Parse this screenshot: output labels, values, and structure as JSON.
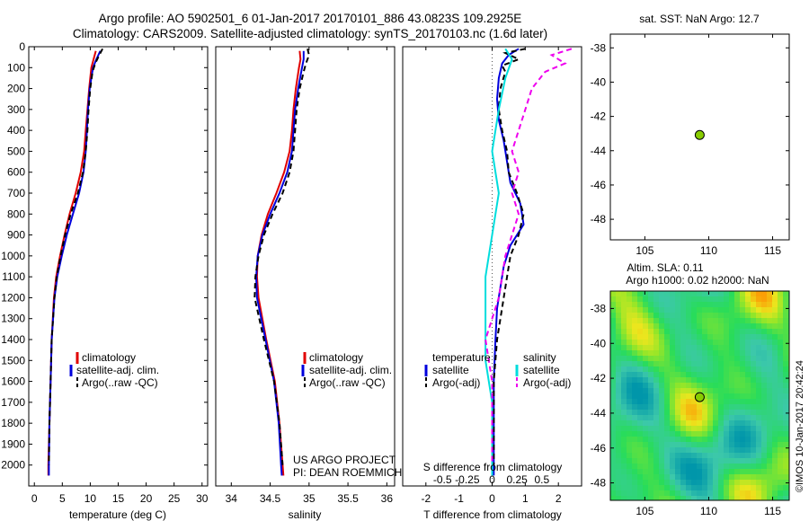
{
  "header": {
    "line1": "Argo profile: AO 5902501_6 01-Jan-2017 20170101_886 43.0823S 109.2925E",
    "line2": "Climatology: CARS2009. Satellite-adjusted climatology: synTS_20170103.nc (1.6d later)"
  },
  "colors": {
    "climatology": "#e00000",
    "satellite": "#0000dd",
    "argo": "#000000",
    "sat_salinity": "#00dddd",
    "argo_salinity": "#ee00ee",
    "marker": "#88cc00"
  },
  "credits": {
    "project": "US ARGO PROJECT",
    "pi": "PI: DEAN ROEMMICH",
    "imos": "©IMOS 10-Jan-2017 20:42:24"
  },
  "chart_data": [
    {
      "id": "temperature",
      "type": "line",
      "xlabel": "temperature (deg C)",
      "xlim": [
        -1,
        31
      ],
      "xticks": [
        0,
        5,
        10,
        15,
        20,
        25,
        30
      ],
      "ylim": [
        2100,
        0
      ],
      "yticks": [
        0,
        100,
        200,
        300,
        400,
        500,
        600,
        700,
        800,
        900,
        1000,
        1100,
        1200,
        1300,
        1400,
        1500,
        1600,
        1700,
        1800,
        1900,
        2000
      ],
      "legend": [
        "climatology",
        "satellite-adj. clim.",
        "Argo(..raw -QC)"
      ],
      "series": [
        {
          "name": "climatology",
          "color": "#e00000",
          "dash": "",
          "depth": [
            20,
            60,
            100,
            150,
            200,
            300,
            400,
            500,
            600,
            700,
            800,
            900,
            1000,
            1100,
            1200,
            1400,
            1600,
            1800,
            2000,
            2050
          ],
          "values": [
            11.0,
            10.6,
            10.2,
            10.0,
            9.8,
            9.5,
            9.2,
            8.9,
            8.3,
            7.4,
            6.3,
            5.4,
            4.6,
            3.9,
            3.5,
            3.1,
            2.9,
            2.7,
            2.5,
            2.5
          ]
        },
        {
          "name": "satellite-adj. clim.",
          "color": "#0000dd",
          "dash": "",
          "depth": [
            20,
            60,
            100,
            150,
            200,
            300,
            400,
            500,
            600,
            700,
            800,
            900,
            1000,
            1100,
            1200,
            1400,
            1600,
            1800,
            2000,
            2050
          ],
          "values": [
            11.8,
            11.1,
            10.5,
            10.2,
            9.9,
            9.6,
            9.4,
            9.2,
            8.8,
            8.0,
            6.9,
            5.8,
            4.9,
            4.1,
            3.6,
            3.1,
            2.9,
            2.7,
            2.6,
            2.6
          ]
        },
        {
          "name": "Argo(..raw -QC)",
          "color": "#000000",
          "dash": "6,4",
          "depth": [
            10,
            40,
            80,
            120,
            200,
            300,
            400,
            500,
            600,
            700,
            800,
            900,
            1000,
            1100,
            1200,
            1400,
            1600,
            1800,
            2000
          ],
          "values": [
            12.2,
            11.6,
            10.9,
            10.4,
            10.0,
            9.7,
            9.5,
            9.2,
            8.7,
            7.8,
            6.5,
            5.5,
            4.7,
            4.0,
            3.6,
            3.1,
            2.9,
            2.7,
            2.6
          ]
        }
      ]
    },
    {
      "id": "salinity",
      "type": "line",
      "xlabel": "salinity",
      "xlim": [
        33.8,
        36.1
      ],
      "xticks": [
        34,
        34.5,
        35,
        35.5,
        36
      ],
      "ylim": [
        2100,
        0
      ],
      "legend": [
        "climatology",
        "satellite-adj. clim.",
        "Argo(..raw -QC)"
      ],
      "series": [
        {
          "name": "climatology",
          "color": "#e00000",
          "dash": "",
          "depth": [
            20,
            60,
            100,
            200,
            300,
            400,
            500,
            600,
            700,
            800,
            900,
            1000,
            1100,
            1200,
            1400,
            1600,
            1800,
            2000,
            2050
          ],
          "values": [
            34.88,
            34.89,
            34.87,
            34.83,
            34.8,
            34.78,
            34.75,
            34.68,
            34.58,
            34.47,
            34.39,
            34.34,
            34.33,
            34.35,
            34.45,
            34.56,
            34.62,
            34.66,
            34.67
          ]
        },
        {
          "name": "satellite-adj. clim.",
          "color": "#0000dd",
          "dash": "",
          "depth": [
            20,
            60,
            100,
            200,
            300,
            400,
            500,
            600,
            700,
            800,
            900,
            1000,
            1100,
            1200,
            1400,
            1600,
            1800,
            2000,
            2050
          ],
          "values": [
            34.93,
            34.93,
            34.91,
            34.86,
            34.82,
            34.8,
            34.78,
            34.72,
            34.62,
            34.5,
            34.4,
            34.34,
            34.32,
            34.33,
            34.44,
            34.55,
            34.61,
            34.64,
            34.65
          ]
        },
        {
          "name": "Argo(..raw -QC)",
          "color": "#000000",
          "dash": "6,4",
          "depth": [
            10,
            40,
            80,
            120,
            200,
            300,
            400,
            500,
            600,
            700,
            800,
            900,
            1000,
            1100,
            1200,
            1400,
            1600,
            1800,
            2000
          ],
          "values": [
            34.98,
            35.0,
            34.96,
            34.93,
            34.88,
            34.84,
            34.82,
            34.8,
            34.75,
            34.66,
            34.53,
            34.42,
            34.35,
            34.31,
            34.3,
            34.42,
            34.55,
            34.62,
            34.66
          ]
        }
      ]
    },
    {
      "id": "difference",
      "type": "line",
      "xlabel": "T difference from climatology",
      "xlabel2": "S difference from climatology",
      "xlim": [
        -2.7,
        2.7
      ],
      "xticks": [
        -2,
        -1,
        0,
        1,
        2
      ],
      "sticks": [
        "-0.5",
        "-0.25",
        "0",
        "0.25",
        "0.5"
      ],
      "ylim": [
        2100,
        0
      ],
      "legend": {
        "temperature_heading": "temperature",
        "salinity_heading": "salinity",
        "temperature": [
          "satellite",
          "Argo(-adj)"
        ],
        "salinity": [
          "satellite",
          "Argo(-adj)"
        ]
      },
      "series": [
        {
          "name": "T satellite",
          "color": "#0000dd",
          "dash": "",
          "depth": [
            10,
            40,
            80,
            150,
            250,
            350,
            450,
            550,
            650,
            750,
            850,
            950,
            1050,
            1150,
            1250,
            1400,
            1600,
            1800,
            2000,
            2050
          ],
          "values": [
            0.8,
            0.5,
            0.3,
            0.2,
            0.15,
            0.2,
            0.35,
            0.45,
            0.55,
            0.85,
            0.95,
            0.55,
            0.35,
            0.25,
            0.15,
            0.1,
            0.05,
            0.05,
            0.05,
            0.05
          ]
        },
        {
          "name": "T Argo(-adj)",
          "color": "#000000",
          "dash": "6,4",
          "depth": [
            10,
            30,
            60,
            90,
            120,
            200,
            300,
            400,
            500,
            600,
            700,
            800,
            900,
            1000,
            1100,
            1200,
            1300,
            1400,
            1600,
            1800,
            2000
          ],
          "values": [
            1.0,
            0.4,
            0.8,
            0.3,
            0.4,
            0.25,
            0.2,
            0.3,
            0.45,
            0.5,
            0.75,
            0.95,
            0.8,
            0.55,
            0.45,
            0.35,
            0.25,
            0.15,
            0.05,
            0.05,
            0.05
          ]
        },
        {
          "name": "S satellite",
          "color": "#00dddd",
          "dash": "",
          "depth": [
            10,
            60,
            150,
            300,
            500,
            700,
            900,
            1100,
            1300,
            1500,
            1700,
            1900,
            2050
          ],
          "values": [
            0.1,
            0.15,
            0.1,
            0.05,
            0.0,
            0.05,
            0.0,
            -0.05,
            -0.05,
            -0.05,
            0.0,
            0.0,
            0.0
          ]
        },
        {
          "name": "S Argo(-adj)",
          "color": "#ee00ee",
          "dash": "6,4",
          "depth": [
            10,
            40,
            80,
            120,
            200,
            300,
            400,
            500,
            600,
            700,
            800,
            1000,
            1200,
            1300,
            1400,
            1600,
            1800,
            2000
          ],
          "values": [
            0.6,
            0.45,
            0.55,
            0.4,
            0.3,
            0.25,
            0.2,
            0.15,
            0.2,
            0.15,
            0.2,
            0.1,
            0.05,
            0.0,
            -0.05,
            0.0,
            0.0,
            0.0
          ]
        }
      ]
    },
    {
      "id": "sst",
      "type": "scatter",
      "title": "sat. SST: NaN Argo: 12.7",
      "xlim": [
        102.3,
        116.3
      ],
      "ylim": [
        -49.2,
        -37.2
      ],
      "xticks": [
        105,
        110,
        115
      ],
      "yticks": [
        -38,
        -40,
        -42,
        -44,
        -46,
        -48
      ],
      "point": {
        "lon": 109.2925,
        "lat": -43.0823
      }
    },
    {
      "id": "sla",
      "type": "heatmap",
      "title1": "Altim. SLA: 0.11",
      "title2": "Argo h1000: 0.02 h2000: NaN",
      "xlim": [
        102.3,
        116.3
      ],
      "ylim": [
        -49.0,
        -37.0
      ],
      "xticks": [
        105,
        110,
        115
      ],
      "yticks": [
        -38,
        -40,
        -42,
        -44,
        -46,
        -48
      ],
      "point": {
        "lon": 109.2925,
        "lat": -43.0823
      }
    }
  ]
}
